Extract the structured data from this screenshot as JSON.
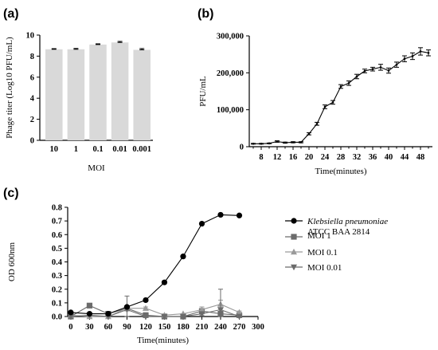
{
  "chart_data": [
    {
      "panel": "(a)",
      "type": "bar",
      "categories": [
        "10",
        "1",
        "0.1",
        "0.01",
        "0.001"
      ],
      "values": [
        8.65,
        8.65,
        9.1,
        9.3,
        8.6
      ],
      "errors": [
        0.06,
        0.08,
        0.07,
        0.1,
        0.12
      ],
      "xlabel": "MOI",
      "ylabel": "Phage titer (Log10 PFU/mL)",
      "ylim": [
        0,
        10
      ],
      "yticks": [
        "0",
        "2",
        "4",
        "6",
        "8",
        "10"
      ],
      "bar_color": "#d9d9d9"
    },
    {
      "panel": "(b)",
      "type": "line",
      "x": [
        6,
        8,
        10,
        12,
        14,
        16,
        18,
        20,
        22,
        24,
        26,
        28,
        30,
        32,
        34,
        36,
        38,
        40,
        42,
        44,
        46,
        48,
        50
      ],
      "values": [
        8000,
        8000,
        9000,
        14000,
        11000,
        12000,
        12000,
        35000,
        62000,
        108000,
        120000,
        163000,
        172000,
        190000,
        205000,
        210000,
        215000,
        206000,
        222000,
        238000,
        245000,
        258000,
        254000
      ],
      "errors": [
        1000,
        1000,
        1000,
        2000,
        1500,
        1500,
        1500,
        3000,
        4000,
        5000,
        5000,
        5000,
        6000,
        6000,
        5000,
        5000,
        8000,
        7000,
        7000,
        8000,
        9000,
        10000,
        8000
      ],
      "xlabel": "Time(minutes)",
      "ylabel": "PFU/mL",
      "xlim": [
        5,
        51
      ],
      "ylim": [
        0,
        300000
      ],
      "xticks": [
        "8",
        "12",
        "16",
        "20",
        "24",
        "28",
        "32",
        "36",
        "40",
        "44",
        "48"
      ],
      "yticks": [
        "0",
        "100,000",
        "200,000",
        "300,000"
      ]
    },
    {
      "panel": "(c)",
      "type": "line",
      "x": [
        0,
        30,
        60,
        90,
        120,
        150,
        180,
        210,
        240,
        270
      ],
      "xlabel": "Time(minutes)",
      "ylabel": "OD 600nm",
      "xlim": [
        -5,
        300
      ],
      "ylim": [
        0,
        0.8
      ],
      "xticks": [
        "0",
        "30",
        "60",
        "90",
        "120",
        "150",
        "180",
        "210",
        "240",
        "270",
        "300"
      ],
      "yticks": [
        "0.0",
        "0.1",
        "0.2",
        "0.3",
        "0.4",
        "0.5",
        "0.6",
        "0.7",
        "0.8"
      ],
      "series": [
        {
          "name_italic": "Klebsiella pneumoniae",
          "name_rest": "ATCC BAA 2814",
          "marker": "circle",
          "color": "#000000",
          "values": [
            0.03,
            0.02,
            0.02,
            0.07,
            0.12,
            0.25,
            0.44,
            0.68,
            0.745,
            0.74
          ],
          "errors": [
            0,
            0,
            0,
            0,
            0,
            0.01,
            0.01,
            0,
            0,
            0
          ]
        },
        {
          "name": "MOI 1",
          "marker": "square",
          "color": "#6b6b6b",
          "values": [
            0.0,
            0.08,
            0.02,
            0.06,
            0.01,
            0.0,
            0.0,
            0.04,
            0.02,
            0.01
          ],
          "errors": [
            0,
            0.01,
            0,
            0.01,
            0,
            0,
            0,
            0.01,
            0.01,
            0
          ]
        },
        {
          "name": "MOI 0.1",
          "marker": "triangle-up",
          "color": "#9a9a9a",
          "values": [
            0.01,
            0.0,
            0.0,
            0.06,
            0.06,
            0.01,
            0.02,
            0.05,
            0.09,
            0.03
          ],
          "errors": [
            0,
            0,
            0,
            0.01,
            0.01,
            0,
            0,
            0.02,
            0.03,
            0.01
          ]
        },
        {
          "name": "MOI 0.01",
          "marker": "triangle-down",
          "color": "#6b6b6b",
          "values": [
            0.0,
            0.01,
            0.0,
            0.05,
            0.0,
            0.0,
            0.0,
            0.02,
            0.05,
            0.0
          ],
          "errors": [
            0,
            0,
            0,
            0.1,
            0,
            0,
            0,
            0.01,
            0.15,
            0
          ]
        }
      ]
    }
  ]
}
